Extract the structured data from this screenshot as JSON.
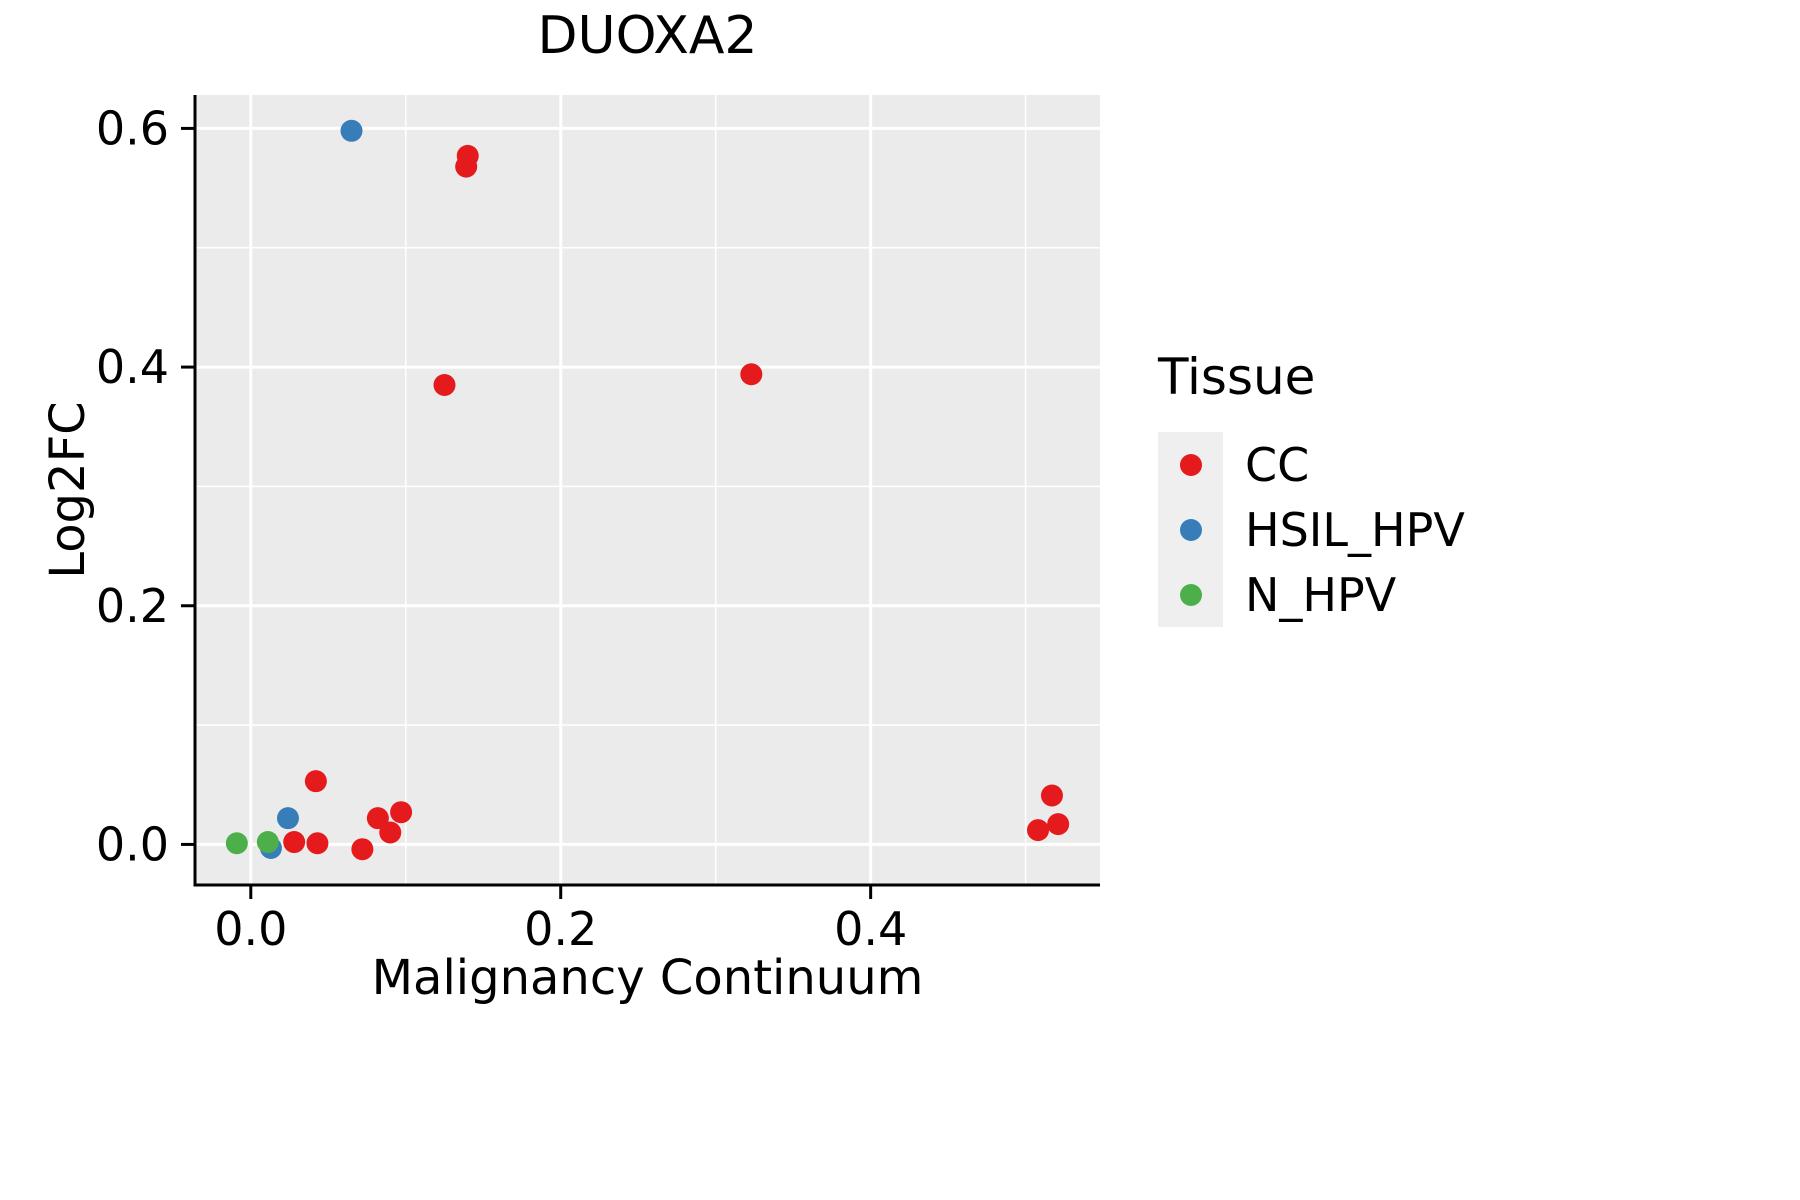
{
  "title": "DUOXA2",
  "colors": {
    "cc": "#E41A1C",
    "hsil_hpv": "#377EB8",
    "n_hpv": "#4DAF4A",
    "panel_bg": "#EBEBEB",
    "grid": "#FFFFFF",
    "axis": "#000000",
    "legend_key_bg": "#EFEFEF"
  },
  "legend": {
    "title": "Tissue",
    "entries": [
      {
        "label": "CC",
        "color": "#E41A1C"
      },
      {
        "label": "HSIL_HPV",
        "color": "#377EB8"
      },
      {
        "label": "N_HPV",
        "color": "#4DAF4A"
      }
    ]
  },
  "chart_data": {
    "type": "scatter",
    "title": "DUOXA2",
    "xlabel": "Malignancy Continuum",
    "ylabel": "Log2FC",
    "xlim": [
      -0.036,
      0.548
    ],
    "ylim": [
      -0.034,
      0.628
    ],
    "x_ticks": [
      0.0,
      0.2,
      0.4
    ],
    "x_tick_labels": [
      "0.0",
      "0.2",
      "0.4"
    ],
    "y_ticks": [
      0.0,
      0.2,
      0.4,
      0.6
    ],
    "y_tick_labels": [
      "0.0",
      "0.2",
      "0.4",
      "0.6"
    ],
    "x_minor_ticks": [
      0.1,
      0.3,
      0.5
    ],
    "y_minor_ticks": [
      0.1,
      0.3,
      0.5
    ],
    "grid": true,
    "legend_position": "right",
    "series": [
      {
        "name": "CC",
        "color": "#E41A1C",
        "points": [
          [
            0.14,
            0.577
          ],
          [
            0.139,
            0.568
          ],
          [
            0.125,
            0.385
          ],
          [
            0.323,
            0.394
          ],
          [
            0.028,
            0.002
          ],
          [
            0.042,
            0.053
          ],
          [
            0.043,
            0.001
          ],
          [
            0.072,
            -0.004
          ],
          [
            0.082,
            0.022
          ],
          [
            0.09,
            0.01
          ],
          [
            0.097,
            0.027
          ],
          [
            0.508,
            0.012
          ],
          [
            0.517,
            0.041
          ],
          [
            0.521,
            0.017
          ]
        ]
      },
      {
        "name": "HSIL_HPV",
        "color": "#377EB8",
        "points": [
          [
            0.065,
            0.598
          ],
          [
            0.013,
            -0.003
          ],
          [
            0.024,
            0.022
          ]
        ]
      },
      {
        "name": "N_HPV",
        "color": "#4DAF4A",
        "points": [
          [
            -0.009,
            0.001
          ],
          [
            0.011,
            0.002
          ]
        ]
      }
    ]
  }
}
